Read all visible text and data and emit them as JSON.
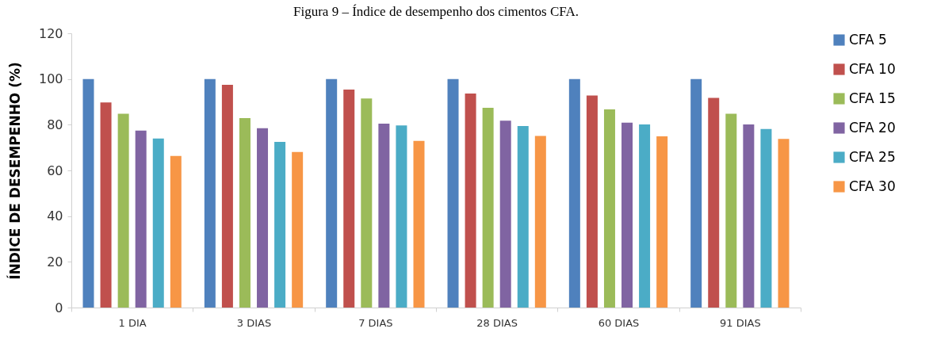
{
  "chart_data": {
    "type": "bar",
    "title": "Figura 9 – Índice de desempenho dos cimentos CFA.",
    "ylabel": "ÍNDICE DE DESEMPENHO (%)",
    "categories": [
      "1 DIA",
      "3 DIAS",
      "7 DIAS",
      "28 DIAS",
      "60 DIAS",
      "91 DIAS"
    ],
    "series": [
      {
        "name": "CFA  5",
        "color": "#4f81bd",
        "values": [
          100,
          100,
          100,
          100,
          100,
          100
        ]
      },
      {
        "name": "CFA 10",
        "color": "#c0504d",
        "values": [
          89.7,
          97.5,
          95.4,
          93.6,
          92.8,
          91.7
        ]
      },
      {
        "name": "CFA 15",
        "color": "#9bbb59",
        "values": [
          84.8,
          82.9,
          91.5,
          87.4,
          86.7,
          84.8
        ]
      },
      {
        "name": "CFA 20",
        "color": "#8064a2",
        "values": [
          77.4,
          78.5,
          80.5,
          81.8,
          80.9,
          80.1
        ]
      },
      {
        "name": "CFA 25",
        "color": "#4bacc6",
        "values": [
          74.0,
          72.5,
          79.7,
          79.4,
          80.1,
          78.1
        ]
      },
      {
        "name": "CFA 30",
        "color": "#f79646",
        "values": [
          66.3,
          68.1,
          72.9,
          75.1,
          74.9,
          73.8
        ]
      }
    ],
    "ylim": [
      0,
      120
    ],
    "yticks": [
      0,
      20,
      40,
      60,
      80,
      100,
      120
    ],
    "legend": "right"
  }
}
